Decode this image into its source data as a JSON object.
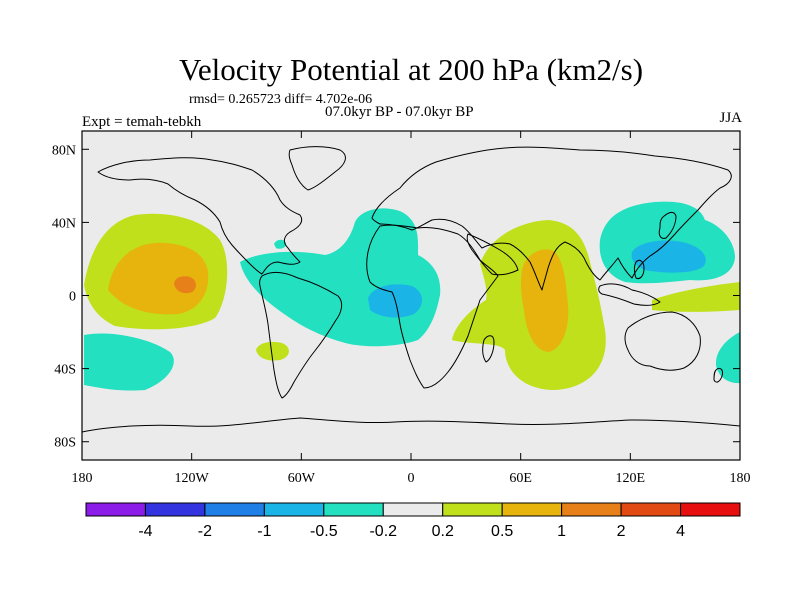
{
  "title": "Velocity Potential at 200 hPa (km2/s)",
  "stats": "rmsd= 0.265723 diff= 4.702e-06",
  "period": "07.0kyr BP - 07.0kyr BP",
  "experiment": "Expt = temah-tebkh",
  "season": "JJA",
  "map": {
    "lon_range": [
      -180,
      180
    ],
    "lat_range": [
      -90,
      90
    ],
    "lat_ticks": [
      {
        "value": 80,
        "label": "80N"
      },
      {
        "value": 40,
        "label": "40N"
      },
      {
        "value": 0,
        "label": "0"
      },
      {
        "value": -40,
        "label": "40S"
      },
      {
        "value": -80,
        "label": "80S"
      }
    ],
    "lon_ticks": [
      {
        "value": -180,
        "label": "180"
      },
      {
        "value": -120,
        "label": "120W"
      },
      {
        "value": -60,
        "label": "60W"
      },
      {
        "value": 0,
        "label": "0"
      },
      {
        "value": 60,
        "label": "60E"
      },
      {
        "value": 120,
        "label": "120E"
      },
      {
        "value": 180,
        "label": "180"
      }
    ],
    "background_color": "#ebebeb"
  },
  "colorbar": {
    "colors": [
      "#8c1ce8",
      "#3333e0",
      "#1f7fe6",
      "#1ab4e6",
      "#22e0c0",
      "#ebebeb",
      "#bfe01a",
      "#e6b40d",
      "#e8801a",
      "#e24a14",
      "#e60e0e"
    ],
    "labels": [
      "-4",
      "-2",
      "-1",
      "-0.5",
      "-0.2",
      "0.2",
      "0.5",
      "1",
      "2",
      "4"
    ]
  }
}
